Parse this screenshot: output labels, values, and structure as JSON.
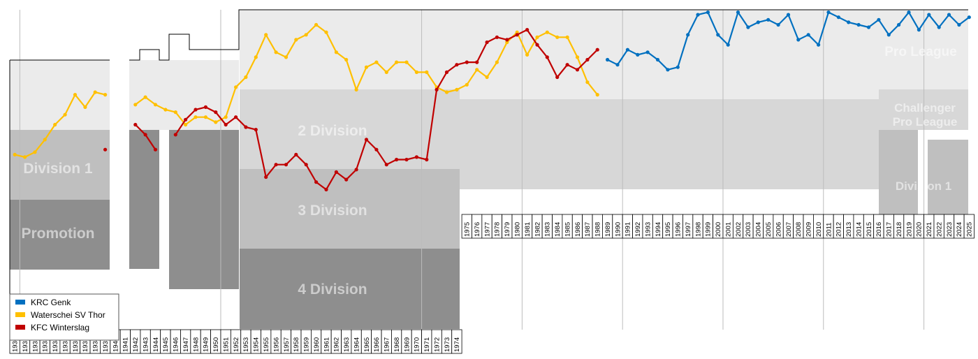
{
  "chart_data": {
    "type": "line",
    "title": "",
    "xlabel": "",
    "ylabel": "",
    "xlim": [
      1930,
      2025
    ],
    "grid": "vertical every 10 seasons",
    "legend_position": "bottom-left",
    "x_tick_labels": [
      "1930",
      "1931",
      "1932",
      "1933",
      "1934",
      "1935",
      "1936",
      "1937",
      "1938",
      "1939",
      "1940",
      "1941",
      "1942",
      "1943",
      "1944",
      "1945",
      "1946",
      "1947",
      "1948",
      "1949",
      "1950",
      "1951",
      "1952",
      "1953",
      "1954",
      "1955",
      "1956",
      "1957",
      "1958",
      "1959",
      "1960",
      "1961",
      "1962",
      "1963",
      "1964",
      "1965",
      "1966",
      "1967",
      "1968",
      "1969",
      "1970",
      "1971",
      "1972",
      "1973",
      "1974",
      "1975",
      "1976",
      "1977",
      "1978",
      "1979",
      "1980",
      "1981",
      "1982",
      "1983",
      "1984",
      "1985",
      "1986",
      "1987",
      "1988",
      "1989",
      "1990",
      "1991",
      "1992",
      "1993",
      "1994",
      "1995",
      "1996",
      "1997",
      "1998",
      "1999",
      "2000",
      "2001",
      "2002",
      "2003",
      "2004",
      "2005",
      "2006",
      "2007",
      "2008",
      "2009",
      "2010",
      "2011",
      "2012",
      "2013",
      "2014",
      "2015",
      "2016",
      "2017",
      "2018",
      "2019",
      "2020",
      "2021",
      "2022",
      "2023",
      "2024",
      "2025"
    ],
    "division_labels": [
      {
        "text": "Pro League",
        "colour": "#ebebeb"
      },
      {
        "text": "Challenger Pro League",
        "colour": "#d7d7d7"
      },
      {
        "text": "Division 1",
        "colour": "#bfbfbf"
      },
      {
        "text": "Promotion",
        "colour": "#a6a6a6"
      },
      {
        "text": "2 Division",
        "colour": "#d7d7d7"
      },
      {
        "text": "3 Division",
        "colour": "#bfbfbf"
      },
      {
        "text": "4 Division",
        "colour": "#a6a6a6"
      }
    ],
    "series": [
      {
        "name": "KRC Genk",
        "color": "#0070c0",
        "points": [
          [
            1989,
            10
          ],
          [
            1990,
            11
          ],
          [
            1991,
            8
          ],
          [
            1992,
            9
          ],
          [
            1993,
            8.5
          ],
          [
            1994,
            10
          ],
          [
            1995,
            12
          ],
          [
            1996,
            11.5
          ],
          [
            1997,
            5
          ],
          [
            1998,
            1
          ],
          [
            1999,
            0.5
          ],
          [
            2000,
            5
          ],
          [
            2001,
            7
          ],
          [
            2002,
            0.5
          ],
          [
            2003,
            3.5
          ],
          [
            2004,
            2.5
          ],
          [
            2005,
            2
          ],
          [
            2006,
            3
          ],
          [
            2007,
            1
          ],
          [
            2008,
            6
          ],
          [
            2009,
            5
          ],
          [
            2010,
            7
          ],
          [
            2011,
            0.5
          ],
          [
            2012,
            1.5
          ],
          [
            2013,
            2.5
          ],
          [
            2014,
            3
          ],
          [
            2015,
            3.5
          ],
          [
            2016,
            2
          ],
          [
            2017,
            5
          ],
          [
            2018,
            3
          ],
          [
            2019,
            0.5
          ],
          [
            2020,
            4
          ],
          [
            2021,
            1
          ],
          [
            2022,
            3.5
          ],
          [
            2023,
            1
          ],
          [
            2024,
            3
          ],
          [
            2025,
            1.5
          ]
        ]
      },
      {
        "name": "Waterschei SV Thor",
        "color": "#ffc000",
        "points": [
          [
            1930,
            29
          ],
          [
            1931,
            29.5
          ],
          [
            1932,
            28.5
          ],
          [
            1933,
            26
          ],
          [
            1934,
            23
          ],
          [
            1935,
            21
          ],
          [
            1936,
            17
          ],
          [
            1937,
            19.5
          ],
          [
            1938,
            16.5
          ],
          [
            1939,
            17
          ],
          [
            1942,
            19
          ],
          [
            1943,
            17.5
          ],
          [
            1944,
            19
          ],
          [
            1945,
            20
          ],
          [
            1946,
            20.5
          ],
          [
            1947,
            23
          ],
          [
            1948,
            21.5
          ],
          [
            1949,
            21.5
          ],
          [
            1950,
            22.5
          ],
          [
            1951,
            21.5
          ],
          [
            1952,
            15.5
          ],
          [
            1953,
            13.5
          ],
          [
            1954,
            9.5
          ],
          [
            1955,
            5
          ],
          [
            1956,
            8.5
          ],
          [
            1957,
            9.5
          ],
          [
            1958,
            6
          ],
          [
            1959,
            5
          ],
          [
            1960,
            3
          ],
          [
            1961,
            4.5
          ],
          [
            1962,
            8.5
          ],
          [
            1963,
            10
          ],
          [
            1964,
            16
          ],
          [
            1965,
            11.5
          ],
          [
            1966,
            10.5
          ],
          [
            1967,
            12.5
          ],
          [
            1968,
            10.5
          ],
          [
            1969,
            10.5
          ],
          [
            1970,
            12.5
          ],
          [
            1971,
            12.5
          ],
          [
            1972,
            15.5
          ],
          [
            1973,
            16.5
          ],
          [
            1974,
            16
          ],
          [
            1975,
            15
          ],
          [
            1976,
            12
          ],
          [
            1977,
            13.5
          ],
          [
            1978,
            10.5
          ],
          [
            1979,
            6.5
          ],
          [
            1980,
            4.5
          ],
          [
            1981,
            9
          ],
          [
            1982,
            5.5
          ],
          [
            1983,
            4.5
          ],
          [
            1984,
            5.5
          ],
          [
            1985,
            5.5
          ],
          [
            1986,
            9.5
          ],
          [
            1987,
            14.5
          ],
          [
            1988,
            17
          ]
        ]
      },
      {
        "name": "KFC Winterslag",
        "color": "#c00000",
        "points": [
          [
            1939,
            28
          ],
          [
            1942,
            23
          ],
          [
            1943,
            25
          ],
          [
            1944,
            28
          ],
          [
            1946,
            25
          ],
          [
            1947,
            22
          ],
          [
            1948,
            20
          ],
          [
            1949,
            19.5
          ],
          [
            1950,
            20.5
          ],
          [
            1951,
            23
          ],
          [
            1952,
            21.5
          ],
          [
            1953,
            23.5
          ],
          [
            1954,
            24
          ],
          [
            1955,
            33.5
          ],
          [
            1956,
            31
          ],
          [
            1957,
            31
          ],
          [
            1958,
            29
          ],
          [
            1959,
            31
          ],
          [
            1960,
            34.5
          ],
          [
            1961,
            36
          ],
          [
            1962,
            32.5
          ],
          [
            1963,
            34
          ],
          [
            1964,
            32
          ],
          [
            1965,
            26
          ],
          [
            1966,
            28
          ],
          [
            1967,
            31
          ],
          [
            1968,
            30
          ],
          [
            1969,
            30
          ],
          [
            1970,
            29.5
          ],
          [
            1971,
            30
          ],
          [
            1972,
            16
          ],
          [
            1973,
            12.5
          ],
          [
            1974,
            11
          ],
          [
            1975,
            10.5
          ],
          [
            1976,
            10.5
          ],
          [
            1977,
            6.5
          ],
          [
            1978,
            5.5
          ],
          [
            1979,
            6
          ],
          [
            1980,
            5
          ],
          [
            1981,
            4
          ],
          [
            1982,
            7
          ],
          [
            1983,
            9.5
          ],
          [
            1984,
            13.5
          ],
          [
            1985,
            11
          ],
          [
            1986,
            12
          ],
          [
            1987,
            10
          ],
          [
            1988,
            8
          ]
        ]
      }
    ]
  },
  "legend": [
    {
      "label": "KRC Genk",
      "color": "#0070c0"
    },
    {
      "label": "Waterschei SV Thor",
      "color": "#ffc000"
    },
    {
      "label": "KFC Winterslag",
      "color": "#c00000"
    }
  ]
}
